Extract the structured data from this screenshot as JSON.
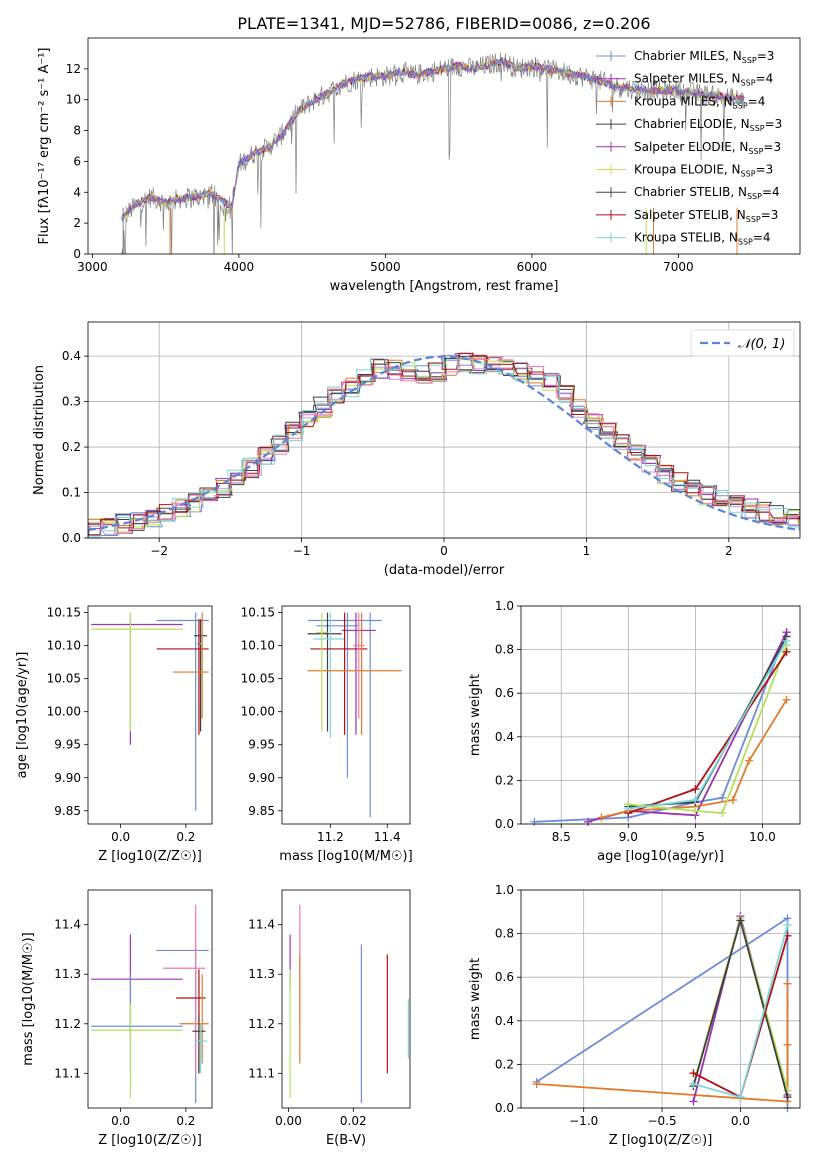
{
  "figure": {
    "title": "PLATE=1341, MJD=52786, FIBERID=0086, z=0.206"
  },
  "colors": {
    "Chabrier MILES": "#6b8fd6",
    "Salpeter MILES": "#9b33b3",
    "Kroupa MILES": "#e07b2a",
    "Chabrier ELODIE": "#3f3f3f",
    "Salpeter ELODIE": "#b89be0",
    "Kroupa ELODIE": "#b5e05a",
    "Chabrier STELIB": "#444444",
    "Salpeter STELIB": "#b01010",
    "Kroupa STELIB": "#7dd6dc",
    "gauss": "#5b86d6",
    "pink": "#f07aa8",
    "gray": "#808080"
  },
  "chart_data": [
    {
      "id": "spectrum",
      "type": "line",
      "xlabel": "wavelength [Angstrom, rest frame]",
      "ylabel": "Flux [f_λ 10^-17 erg cm^-2 s^-1 A^-1]",
      "xlim": [
        2970,
        7830
      ],
      "ylim": [
        0,
        14
      ],
      "xticks": [
        3000,
        4000,
        5000,
        6000,
        7000
      ],
      "yticks": [
        0,
        2,
        4,
        6,
        8,
        10,
        12
      ],
      "legend_position": "top-right",
      "legend": [
        {
          "label": "Chabrier MILES, N_SSP=3",
          "color": "#6b8fd6"
        },
        {
          "label": "Salpeter MILES, N_SSP=4",
          "color": "#9b33b3"
        },
        {
          "label": "Kroupa MILES, N_SSP=4",
          "color": "#e07b2a"
        },
        {
          "label": "Chabrier ELODIE, N_SSP=3",
          "color": "#3f3f3f"
        },
        {
          "label": "Salpeter ELODIE, N_SSP=3",
          "color": "#9b33b3"
        },
        {
          "label": "Kroupa ELODIE, N_SSP=3",
          "color": "#c8e05a"
        },
        {
          "label": "Chabrier STELIB, N_SSP=4",
          "color": "#444444"
        },
        {
          "label": "Salpeter STELIB, N_SSP=3",
          "color": "#b01010"
        },
        {
          "label": "Kroupa STELIB, N_SSP=4",
          "color": "#7dd6dc"
        }
      ],
      "continuum": [
        [
          3200,
          2.3
        ],
        [
          3300,
          3.2
        ],
        [
          3400,
          3.7
        ],
        [
          3500,
          3.3
        ],
        [
          3600,
          3.6
        ],
        [
          3700,
          3.7
        ],
        [
          3800,
          3.9
        ],
        [
          3900,
          3.4
        ],
        [
          3950,
          3.0
        ],
        [
          4000,
          5.8
        ],
        [
          4100,
          6.5
        ],
        [
          4200,
          6.9
        ],
        [
          4300,
          7.8
        ],
        [
          4400,
          9.2
        ],
        [
          4500,
          9.9
        ],
        [
          4600,
          10.4
        ],
        [
          4700,
          11.0
        ],
        [
          4800,
          11.3
        ],
        [
          4900,
          11.5
        ],
        [
          5000,
          11.5
        ],
        [
          5100,
          11.8
        ],
        [
          5200,
          11.6
        ],
        [
          5300,
          11.8
        ],
        [
          5400,
          12.0
        ],
        [
          5500,
          12.2
        ],
        [
          5600,
          12.0
        ],
        [
          5800,
          12.5
        ],
        [
          5900,
          12.0
        ],
        [
          6000,
          12.2
        ],
        [
          6200,
          11.8
        ],
        [
          6400,
          11.4
        ],
        [
          6600,
          10.8
        ],
        [
          6800,
          10.6
        ],
        [
          7000,
          10.6
        ],
        [
          7200,
          10.3
        ],
        [
          7450,
          10.0
        ]
      ]
    },
    {
      "id": "residuals",
      "type": "line",
      "xlabel": "(data-model)/error",
      "ylabel": "Normed distribution",
      "xlim": [
        -2.5,
        2.5
      ],
      "ylim": [
        0,
        0.475
      ],
      "xticks": [
        -2,
        -1,
        0,
        1,
        2
      ],
      "yticks": [
        0.0,
        0.1,
        0.2,
        0.3,
        0.4
      ],
      "legend_position": "top-right",
      "gauss_label": "𝒩(0, 1)",
      "histogram_bin_width": 0.1,
      "histogram_envelope": [
        [
          -2.5,
          0.018
        ],
        [
          -2.2,
          0.035
        ],
        [
          -2.0,
          0.05
        ],
        [
          -1.7,
          0.085
        ],
        [
          -1.5,
          0.12
        ],
        [
          -1.2,
          0.19
        ],
        [
          -1.0,
          0.25
        ],
        [
          -0.8,
          0.3
        ],
        [
          -0.6,
          0.34
        ],
        [
          -0.5,
          0.375
        ],
        [
          -0.3,
          0.37
        ],
        [
          -0.1,
          0.36
        ],
        [
          0.0,
          0.37
        ],
        [
          0.1,
          0.39
        ],
        [
          0.3,
          0.38
        ],
        [
          0.5,
          0.37
        ],
        [
          0.7,
          0.35
        ],
        [
          0.8,
          0.33
        ],
        [
          1.0,
          0.27
        ],
        [
          1.2,
          0.23
        ],
        [
          1.4,
          0.17
        ],
        [
          1.6,
          0.13
        ],
        [
          1.8,
          0.1
        ],
        [
          2.0,
          0.08
        ],
        [
          2.2,
          0.06
        ],
        [
          2.5,
          0.04
        ]
      ]
    },
    {
      "id": "age-vs-Z",
      "type": "scatter",
      "xlabel": "Z [log10(Z/Z☉)]",
      "ylabel": "age  [log10(age/yr)]",
      "xlim": [
        -0.1,
        0.28
      ],
      "ylim": [
        9.83,
        10.16
      ],
      "xticks": [
        0.0,
        0.2
      ],
      "yticks": [
        9.85,
        9.9,
        9.95,
        10.0,
        10.05,
        10.1,
        10.15
      ],
      "series": [
        {
          "x": 0.23,
          "y": 10.138,
          "xerr": [
            0.12,
            0.04
          ],
          "yerr": [
            0.01,
            0.02
          ],
          "color": "#6b8fd6",
          "v": [
            9.85,
            10.15
          ]
        },
        {
          "x": 0.03,
          "y": 10.132,
          "xerr": [
            0.12,
            0.16
          ],
          "yerr": [
            0.18,
            0.02
          ],
          "color": "#9b33b3",
          "v": [
            9.95,
            10.15
          ]
        },
        {
          "x": 0.03,
          "y": 10.125,
          "xerr": [
            0.12,
            0.16
          ],
          "yerr": [
            0.1,
            0.03
          ],
          "color": "#b5e05a",
          "v": [
            9.97,
            10.15
          ]
        },
        {
          "x": 0.245,
          "y": 10.115,
          "xerr": [
            0.02,
            0.02
          ],
          "yerr": [
            0.02,
            0.02
          ],
          "color": "#3f3f3f",
          "v": [
            9.97,
            10.14
          ]
        },
        {
          "x": 0.24,
          "y": 10.103,
          "xerr": [
            0.01,
            0.01
          ],
          "yerr": [
            0.02,
            0.02
          ],
          "color": "#7dd6dc",
          "v": [
            9.98,
            10.14
          ]
        },
        {
          "x": 0.24,
          "y": 10.095,
          "xerr": [
            0.13,
            0.03
          ],
          "yerr": [
            0.02,
            0.02
          ],
          "color": "#b01010",
          "v": [
            9.965,
            10.14
          ]
        },
        {
          "x": 0.25,
          "y": 10.06,
          "xerr": [
            0.09,
            0.02
          ],
          "yerr": [
            0.07,
            0.09
          ],
          "color": "#e07b2a",
          "v": [
            9.99,
            10.15
          ]
        }
      ]
    },
    {
      "id": "age-vs-mass",
      "type": "scatter",
      "xlabel": "mass [log10(M/M☉)]",
      "ylabel": "",
      "xlim": [
        11.03,
        11.48
      ],
      "ylim": [
        9.83,
        10.16
      ],
      "xticks": [
        11.2,
        11.4
      ],
      "yticks": [
        9.85,
        9.9,
        9.95,
        10.0,
        10.05,
        10.1,
        10.15
      ],
      "series": [
        {
          "x": 11.34,
          "y": 10.138,
          "xerr": [
            0.22,
            0.04
          ],
          "color": "#6b8fd6",
          "v": [
            9.84,
            10.15
          ]
        },
        {
          "x": 11.26,
          "y": 10.13,
          "xerr": [
            0.11,
            0.04
          ],
          "color": "#6b8fd6",
          "v": [
            9.9,
            10.15
          ]
        },
        {
          "x": 11.29,
          "y": 10.123,
          "xerr": [
            0.05,
            0.07
          ],
          "color": "#9b33b3",
          "v": [
            9.965,
            10.15
          ]
        },
        {
          "x": 11.19,
          "y": 10.118,
          "xerr": [
            0.07,
            0.05
          ],
          "color": "#3f3f3f",
          "v": [
            9.97,
            10.15
          ]
        },
        {
          "x": 11.2,
          "y": 10.11,
          "xerr": [
            0.06,
            0.05
          ],
          "color": "#7dd6dc",
          "v": [
            9.96,
            10.15
          ]
        },
        {
          "x": 11.25,
          "y": 10.095,
          "xerr": [
            0.12,
            0.08
          ],
          "color": "#b01010",
          "v": [
            9.965,
            10.15
          ]
        },
        {
          "x": 11.31,
          "y": 10.062,
          "xerr": [
            0.19,
            0.14
          ],
          "color": "#e07b2a",
          "v": [
            9.965,
            10.15
          ]
        },
        {
          "x": 11.3,
          "y": 10.1,
          "xerr": [
            0.02,
            0.02
          ],
          "color": "#f07aa8",
          "v": [
            9.99,
            10.15
          ]
        },
        {
          "x": 11.17,
          "y": 10.12,
          "xerr": [
            0.02,
            0.02
          ],
          "color": "#b5e05a",
          "v": [
            9.97,
            10.15
          ]
        }
      ]
    },
    {
      "id": "weight-vs-age",
      "type": "line",
      "xlabel": "age  [log10(age/yr)]",
      "ylabel": "mass weight",
      "xlim": [
        8.2,
        10.28
      ],
      "ylim": [
        0,
        1.0
      ],
      "xticks": [
        8.5,
        9.0,
        9.5,
        10.0
      ],
      "yticks": [
        0.0,
        0.2,
        0.4,
        0.6,
        0.8,
        1.0
      ],
      "series": [
        {
          "color": "#6b8fd6",
          "x": [
            8.3,
            9.0,
            9.5,
            9.7,
            10.18
          ],
          "y": [
            0.01,
            0.03,
            0.1,
            0.12,
            0.88
          ]
        },
        {
          "color": "#9b33b3",
          "x": [
            8.7,
            9.0,
            9.5,
            10.18
          ],
          "y": [
            0.01,
            0.06,
            0.04,
            0.88
          ]
        },
        {
          "color": "#e07b2a",
          "x": [
            8.8,
            9.0,
            9.5,
            9.78,
            9.9,
            10.18
          ],
          "y": [
            0.03,
            0.06,
            0.08,
            0.11,
            0.29,
            0.57
          ]
        },
        {
          "color": "#3f3f3f",
          "x": [
            9.0,
            9.5,
            10.18
          ],
          "y": [
            0.08,
            0.1,
            0.86
          ]
        },
        {
          "color": "#b5e05a",
          "x": [
            9.0,
            9.5,
            9.7,
            10.18
          ],
          "y": [
            0.09,
            0.06,
            0.05,
            0.82
          ]
        },
        {
          "color": "#b01010",
          "x": [
            9.0,
            9.5,
            10.18
          ],
          "y": [
            0.05,
            0.16,
            0.79
          ]
        },
        {
          "color": "#7dd6dc",
          "x": [
            9.0,
            9.5,
            10.18
          ],
          "y": [
            0.07,
            0.11,
            0.84
          ]
        }
      ]
    },
    {
      "id": "mass-vs-Z",
      "type": "scatter",
      "xlabel": "Z [log10(Z/Z☉)]",
      "ylabel": "mass [log10(M/M☉)]",
      "xlim": [
        -0.1,
        0.28
      ],
      "ylim": [
        11.03,
        11.47
      ],
      "xticks": [
        0.0,
        0.2
      ],
      "yticks": [
        11.1,
        11.2,
        11.3,
        11.4
      ],
      "series": [
        {
          "x": 0.23,
          "y": 11.348,
          "xerr": [
            0.12,
            0.04
          ],
          "color": "#6b8fd6",
          "v": [
            11.04,
            11.36
          ]
        },
        {
          "x": 0.23,
          "y": 11.312,
          "xerr": [
            0.1,
            0.03
          ],
          "color": "#f07aa8",
          "v": [
            11.1,
            11.44
          ]
        },
        {
          "x": 0.03,
          "y": 11.29,
          "xerr": [
            0.12,
            0.16
          ],
          "color": "#9b33b3",
          "v": [
            11.18,
            11.38
          ]
        },
        {
          "x": 0.24,
          "y": 11.252,
          "xerr": [
            0.07,
            0.02
          ],
          "color": "#b01010",
          "v": [
            11.1,
            11.31
          ]
        },
        {
          "x": 0.25,
          "y": 11.2,
          "xerr": [
            0.07,
            0.02
          ],
          "color": "#e07b2a",
          "v": [
            11.12,
            11.3
          ]
        },
        {
          "x": 0.03,
          "y": 11.195,
          "xerr": [
            0.12,
            0.16
          ],
          "color": "#6b8fd6",
          "v": [
            11.1,
            11.3
          ]
        },
        {
          "x": 0.24,
          "y": 11.185,
          "xerr": [
            0.02,
            0.02
          ],
          "color": "#3f3f3f",
          "v": [
            11.1,
            11.22
          ]
        },
        {
          "x": 0.03,
          "y": 11.187,
          "xerr": [
            0.12,
            0.16
          ],
          "color": "#b5e05a",
          "v": [
            11.05,
            11.24
          ]
        },
        {
          "x": 0.245,
          "y": 11.165,
          "xerr": [
            0.02,
            0.02
          ],
          "color": "#7dd6dc",
          "v": [
            11.1,
            11.2
          ]
        }
      ]
    },
    {
      "id": "mass-vs-ebv",
      "type": "scatter",
      "xlabel": "E(B-V)",
      "ylabel": "",
      "xlim": [
        -0.002,
        0.0375
      ],
      "ylim": [
        11.03,
        11.47
      ],
      "xticks": [
        0.0,
        0.02
      ],
      "yticks": [
        11.1,
        11.2,
        11.3,
        11.4
      ],
      "series": [
        {
          "x": 0.0005,
          "y": 11.3,
          "color": "#9b33b3",
          "v": [
            11.27,
            11.38
          ]
        },
        {
          "x": 0.0005,
          "y": 11.18,
          "color": "#b5e05a",
          "v": [
            11.05,
            11.31
          ]
        },
        {
          "x": 0.0035,
          "y": 11.3,
          "color": "#f07aa8",
          "v": [
            11.2,
            11.44
          ]
        },
        {
          "x": 0.0035,
          "y": 11.25,
          "color": "#e07b2a",
          "v": [
            11.12,
            11.34
          ]
        },
        {
          "x": 0.0225,
          "y": 11.2,
          "color": "#6b8fd6",
          "v": [
            11.04,
            11.36
          ]
        },
        {
          "x": 0.0305,
          "y": 11.22,
          "color": "#b01010",
          "v": [
            11.1,
            11.34
          ]
        },
        {
          "x": 0.037,
          "y": 11.2,
          "color": "#7dd6dc",
          "v": [
            11.13,
            11.25
          ]
        }
      ]
    },
    {
      "id": "weight-vs-Z",
      "type": "line",
      "xlabel": "Z [log10(Z/Z☉)]",
      "ylabel": "mass weight",
      "xlim": [
        -1.4,
        0.38
      ],
      "ylim": [
        0,
        1.0
      ],
      "xticks": [
        -1.0,
        -0.5,
        0.0
      ],
      "yticks": [
        0.0,
        0.2,
        0.4,
        0.6,
        0.8,
        1.0
      ],
      "series": [
        {
          "color": "#6b8fd6",
          "x": [
            -1.3,
            0.3,
            0.3
          ],
          "y": [
            0.12,
            0.87,
            0.0
          ]
        },
        {
          "color": "#e07b2a",
          "x": [
            -1.3,
            0.3,
            0.3,
            0.3
          ],
          "y": [
            0.11,
            0.03,
            0.29,
            0.57
          ]
        },
        {
          "color": "#9b33b3",
          "x": [
            -0.3,
            0.0,
            0.3
          ],
          "y": [
            0.03,
            0.88,
            0.06
          ]
        },
        {
          "color": "#b5e05a",
          "x": [
            -0.3,
            0.0,
            0.3
          ],
          "y": [
            0.11,
            0.87,
            0.08
          ]
        },
        {
          "color": "#3f3f3f",
          "x": [
            -0.3,
            0.0,
            0.3
          ],
          "y": [
            0.1,
            0.86,
            0.05
          ]
        },
        {
          "color": "#b01010",
          "x": [
            -0.3,
            0.0,
            0.3
          ],
          "y": [
            0.16,
            0.05,
            0.79
          ]
        },
        {
          "color": "#7dd6dc",
          "x": [
            -0.3,
            0.0,
            0.3
          ],
          "y": [
            0.11,
            0.05,
            0.84
          ]
        }
      ]
    }
  ]
}
